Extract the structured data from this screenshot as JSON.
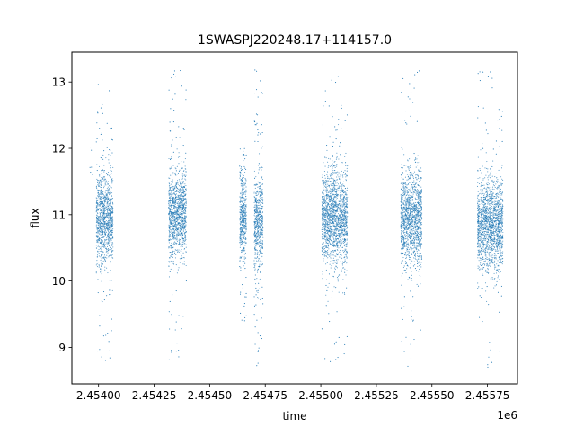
{
  "chart_data": {
    "type": "scatter",
    "title": "1SWASPJ220248.17+114157.0",
    "xlabel": "time",
    "ylabel": "flux",
    "x_offset_label": "1e6",
    "xlim": [
      2.45388,
      2.455885
    ],
    "ylim": [
      8.45,
      13.45
    ],
    "x_ticks": [
      2.454,
      2.45425,
      2.4545,
      2.45475,
      2.455,
      2.45525,
      2.4555,
      2.45575
    ],
    "x_tick_labels": [
      "2.45400",
      "2.45425",
      "2.45450",
      "2.45475",
      "2.45500",
      "2.45525",
      "2.45550",
      "2.45575"
    ],
    "y_ticks": [
      9,
      10,
      11,
      12,
      13
    ],
    "y_tick_labels": [
      "9",
      "10",
      "11",
      "12",
      "13"
    ],
    "marker_color": "#1f77b4",
    "grid": false,
    "series": [
      {
        "values_summary": "dense observation seasons of flux near 11",
        "seasons": [
          {
            "x_start": 2.45399,
            "x_end": 2.454065,
            "center_flux": 10.95,
            "spread": 0.55,
            "x_min_outlier": 2.45396,
            "y_range": [
              8.8,
              13.1
            ]
          },
          {
            "x_start": 2.454315,
            "x_end": 2.454395,
            "center_flux": 11.0,
            "spread": 0.5,
            "y_range": [
              8.7,
              13.2
            ]
          },
          {
            "x_start": 2.454635,
            "x_end": 2.454665,
            "center_flux": 10.95,
            "spread": 0.45,
            "y_range": [
              9.4,
              12.0
            ]
          },
          {
            "x_start": 2.4547,
            "x_end": 2.45474,
            "center_flux": 10.85,
            "spread": 0.55,
            "y_range": [
              8.7,
              13.2
            ]
          },
          {
            "x_start": 2.455005,
            "x_end": 2.45512,
            "center_flux": 10.95,
            "spread": 0.6,
            "y_range": [
              8.7,
              13.1
            ]
          },
          {
            "x_start": 2.45536,
            "x_end": 2.455455,
            "center_flux": 10.95,
            "spread": 0.55,
            "y_range": [
              8.7,
              13.2
            ]
          },
          {
            "x_start": 2.455705,
            "x_end": 2.45582,
            "center_flux": 10.85,
            "spread": 0.55,
            "y_range": [
              8.7,
              13.2
            ]
          }
        ]
      }
    ]
  }
}
